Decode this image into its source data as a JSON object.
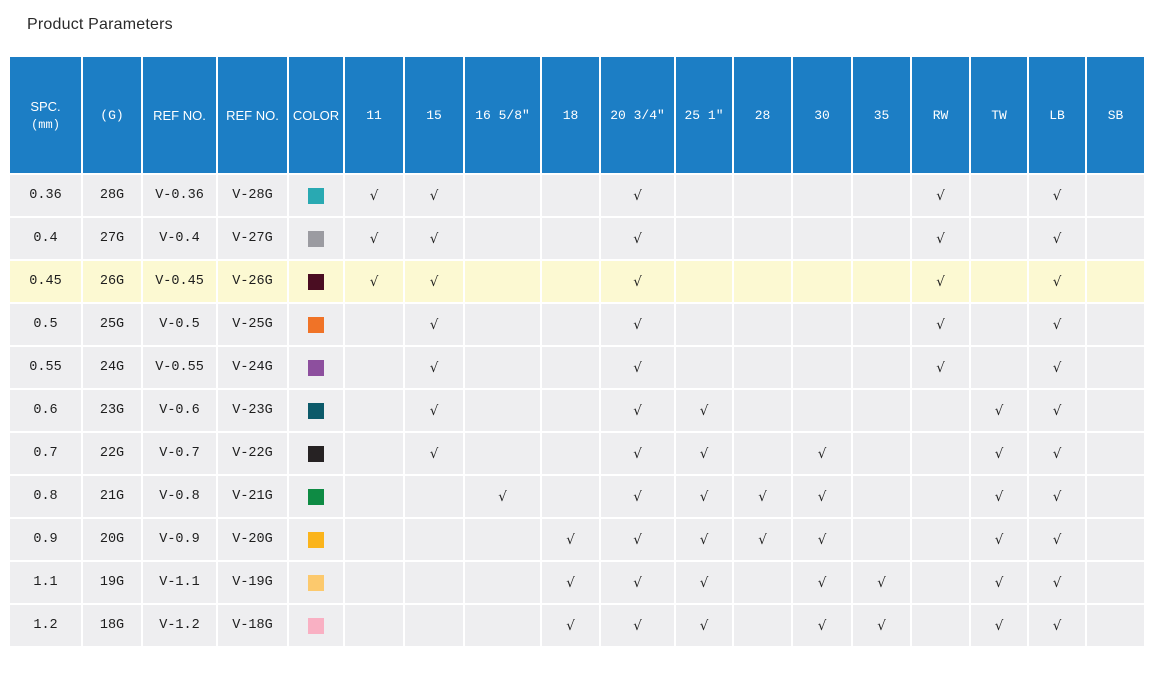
{
  "page": {
    "title": "Product Parameters"
  },
  "colors": {
    "header_bg": "#1c7ec5",
    "row_bg": "#eeeef0",
    "highlight_bg": "#fcf9d2",
    "grid": "#ffffff",
    "check": "#2b2b2b",
    "title": "#2a2a2a"
  },
  "table": {
    "check_symbol": "√",
    "columns": [
      {
        "key": "spc",
        "label": "SPC.",
        "sub": "(mm)",
        "type": "text"
      },
      {
        "key": "g",
        "label": "(G)",
        "type": "text",
        "mono": true
      },
      {
        "key": "ref1",
        "label": "REF NO.",
        "type": "text"
      },
      {
        "key": "ref2",
        "label": "REF NO.",
        "type": "text"
      },
      {
        "key": "color",
        "label": "COLOR",
        "type": "color"
      },
      {
        "key": "c11",
        "label": "11",
        "type": "check",
        "mono": true
      },
      {
        "key": "c15",
        "label": "15",
        "type": "check",
        "mono": true
      },
      {
        "key": "c16",
        "label": "16 5/8″",
        "type": "check",
        "mono": true
      },
      {
        "key": "c18",
        "label": "18",
        "type": "check",
        "mono": true
      },
      {
        "key": "c20",
        "label": "20 3/4″",
        "type": "check",
        "mono": true
      },
      {
        "key": "c25",
        "label": "25 1″",
        "type": "check",
        "mono": true
      },
      {
        "key": "c28",
        "label": "28",
        "type": "check",
        "mono": true
      },
      {
        "key": "c30",
        "label": "30",
        "type": "check",
        "mono": true
      },
      {
        "key": "c35",
        "label": "35",
        "type": "check",
        "mono": true
      },
      {
        "key": "rw",
        "label": "RW",
        "type": "check",
        "mono": true
      },
      {
        "key": "tw",
        "label": "TW",
        "type": "check",
        "mono": true
      },
      {
        "key": "lb",
        "label": "LB",
        "type": "check",
        "mono": true
      },
      {
        "key": "sb",
        "label": "SB",
        "type": "check",
        "mono": true
      }
    ],
    "rows": [
      {
        "spc": "0.36",
        "g": "28G",
        "ref1": "V-0.36",
        "ref2": "V-28G",
        "color": "#29a9b2",
        "highlight": false,
        "checks": [
          "11",
          "15",
          "20 3/4″",
          "RW",
          "LB"
        ]
      },
      {
        "spc": "0.4",
        "g": "27G",
        "ref1": "V-0.4",
        "ref2": "V-27G",
        "color": "#9b9ba1",
        "highlight": false,
        "checks": [
          "11",
          "15",
          "20 3/4″",
          "RW",
          "LB"
        ]
      },
      {
        "spc": "0.45",
        "g": "26G",
        "ref1": "V-0.45",
        "ref2": "V-26G",
        "color": "#4a0d22",
        "highlight": true,
        "checks": [
          "11",
          "15",
          "20 3/4″",
          "RW",
          "LB"
        ]
      },
      {
        "spc": "0.5",
        "g": "25G",
        "ref1": "V-0.5",
        "ref2": "V-25G",
        "color": "#f07327",
        "highlight": false,
        "checks": [
          "15",
          "20 3/4″",
          "RW",
          "LB"
        ]
      },
      {
        "spc": "0.55",
        "g": "24G",
        "ref1": "V-0.55",
        "ref2": "V-24G",
        "color": "#8d4f9e",
        "highlight": false,
        "checks": [
          "15",
          "20 3/4″",
          "RW",
          "LB"
        ]
      },
      {
        "spc": "0.6",
        "g": "23G",
        "ref1": "V-0.6",
        "ref2": "V-23G",
        "color": "#0c5a6a",
        "highlight": false,
        "checks": [
          "15",
          "20 3/4″",
          "25 1″",
          "TW",
          "LB"
        ]
      },
      {
        "spc": "0.7",
        "g": "22G",
        "ref1": "V-0.7",
        "ref2": "V-22G",
        "color": "#262223",
        "highlight": false,
        "checks": [
          "15",
          "20 3/4″",
          "25 1″",
          "30",
          "TW",
          "LB"
        ]
      },
      {
        "spc": "0.8",
        "g": "21G",
        "ref1": "V-0.8",
        "ref2": "V-21G",
        "color": "#0e8b44",
        "highlight": false,
        "checks": [
          "16 5/8″",
          "20 3/4″",
          "25 1″",
          "28",
          "30",
          "TW",
          "LB"
        ]
      },
      {
        "spc": "0.9",
        "g": "20G",
        "ref1": "V-0.9",
        "ref2": "V-20G",
        "color": "#fbb41b",
        "highlight": false,
        "checks": [
          "18",
          "20 3/4″",
          "25 1″",
          "28",
          "30",
          "TW",
          "LB"
        ]
      },
      {
        "spc": "1.1",
        "g": "19G",
        "ref1": "V-1.1",
        "ref2": "V-19G",
        "color": "#fcc96d",
        "highlight": false,
        "checks": [
          "18",
          "20 3/4″",
          "25 1″",
          "30",
          "35",
          "TW",
          "LB"
        ]
      },
      {
        "spc": "1.2",
        "g": "18G",
        "ref1": "V-1.2",
        "ref2": "V-18G",
        "color": "#f9b0c3",
        "highlight": false,
        "checks": [
          "18",
          "20 3/4″",
          "25 1″",
          "30",
          "35",
          "TW",
          "LB"
        ]
      }
    ]
  }
}
